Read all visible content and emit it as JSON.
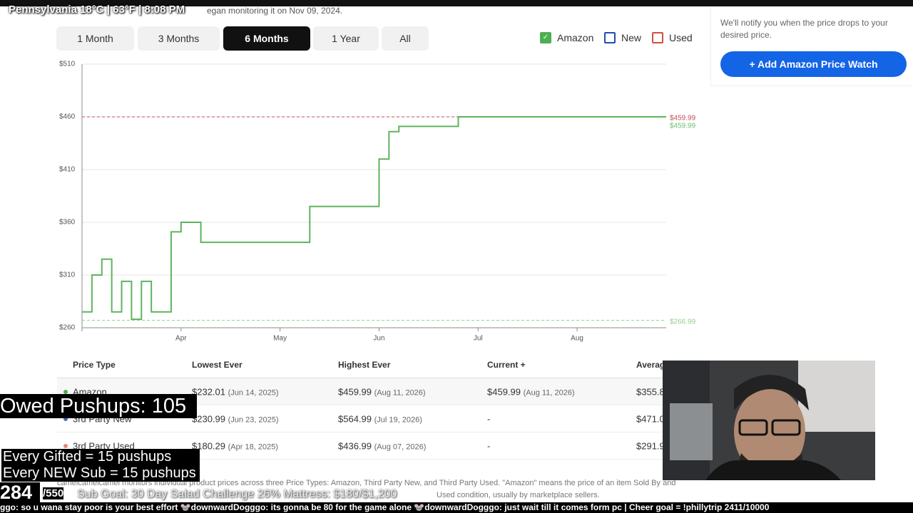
{
  "overlay": {
    "location": "Pennsylvania 18°C | 63°F | 8:08 PM",
    "monitoring": "egan monitoring it on Nov 09, 2024.",
    "pushups": "Owed Pushups: 105",
    "rules": [
      "Every Gifted = 15 pushups",
      "Every NEW Sub = 15 pushups"
    ],
    "count": "284",
    "count_goal": "/550",
    "goals": "Sub Goal: 30 Day Salad Challenge 26% Mattress: $180/$1,200",
    "chat": "ggo: so u wana stay poor is your best effort 🐭downwardDogggo: its gonna be 80 for the game alone 🐭downwardDogggo: just wait till it comes form pc | Cheer goal = !phillytrip 2411/10000"
  },
  "ranges": [
    "1 Month",
    "3 Months",
    "6 Months",
    "1 Year",
    "All"
  ],
  "active_range": 2,
  "legend": [
    {
      "name": "Amazon",
      "color": "#4caf50",
      "checked": true
    },
    {
      "name": "New",
      "color": "#1f4fb4",
      "checked": false
    },
    {
      "name": "Used",
      "color": "#d0503c",
      "checked": false
    }
  ],
  "sidebar": {
    "note": "We'll notify you when the price drops to your desired price.",
    "button": "+ Add Amazon Price Watch"
  },
  "table": {
    "headers": [
      "Price Type",
      "Lowest Ever",
      "Highest Ever",
      "Current +",
      "Averag"
    ],
    "rows": [
      {
        "dot": "#4caf50",
        "cells": [
          "Amazon",
          "$232.01",
          "(Jun 14, 2025)",
          "$459.99",
          "(Aug 11, 2026)",
          "$459.99",
          "(Aug 11, 2026)",
          "$355.8"
        ]
      },
      {
        "dot": "#4a6fc4",
        "cells": [
          "3rd Party New",
          "$230.99",
          "(Jun 23, 2025)",
          "$564.99",
          "(Jul 19, 2026)",
          "-",
          null,
          "$471.0"
        ]
      },
      {
        "dot": "#e08a7a",
        "cells": [
          "3rd Party Used",
          "$180.29",
          "(Apr 18, 2025)",
          "$436.99",
          "(Aug 07, 2026)",
          "-",
          null,
          "$291.9"
        ]
      }
    ]
  },
  "footer": [
    "camelcamelcamel monitors individual product prices across three Price Types: Amazon, Third Party New, and Third Party Used. \"Amazon\" means the price of an item Sold By and",
    "Used condition, usually by marketplace sellers."
  ],
  "chart_data": {
    "type": "line",
    "step": true,
    "grid": true,
    "categories": [
      "",
      null,
      null,
      null,
      null,
      null,
      null,
      null,
      null,
      null,
      "Apr",
      null,
      null,
      null,
      null,
      null,
      null,
      null,
      null,
      null,
      "May",
      null,
      null,
      null,
      null,
      null,
      null,
      null,
      null,
      null,
      "Jun",
      null,
      null,
      null,
      null,
      null,
      null,
      null,
      null,
      null,
      "Jul",
      null,
      null,
      null,
      null,
      null,
      null,
      null,
      null,
      null,
      "Aug",
      null,
      null,
      null,
      null,
      null,
      null,
      null,
      null,
      null
    ],
    "series": [
      {
        "name": "Amazon",
        "color": "#5fb35f",
        "values": [
          275,
          310,
          325,
          275,
          304,
          268,
          304,
          275,
          275,
          351,
          360,
          360,
          341,
          341,
          341,
          341,
          341,
          341,
          341,
          341,
          341,
          341,
          341,
          375,
          375,
          375,
          375,
          375,
          375,
          375,
          420,
          446,
          451,
          451,
          451,
          451,
          451,
          451,
          459.99,
          459.99,
          459.99,
          459.99,
          459.99,
          459.99,
          459.99,
          459.99,
          459.99,
          459.99,
          459.99,
          459.99,
          459.99,
          459.99,
          459.99,
          459.99,
          459.99,
          459.99,
          459.99,
          459.99,
          459.99,
          459.99
        ]
      }
    ],
    "reference_lines": [
      {
        "value": 459.99,
        "label": "$459.99",
        "color": "#c0505a",
        "dashed": true
      },
      {
        "value": 459.99,
        "label": "$459.99",
        "color": "#6cbf6c",
        "dashed": false
      },
      {
        "value": 266.99,
        "label": "$266.99",
        "color": "#8fd08f",
        "dashed": true
      }
    ],
    "ylim": [
      260,
      510
    ],
    "yticks": [
      {
        "value": 260,
        "label": "$260"
      },
      {
        "value": 310,
        "label": "$310"
      },
      {
        "value": 360,
        "label": "$360"
      },
      {
        "value": 410,
        "label": "$410"
      },
      {
        "value": 460,
        "label": "$460"
      },
      {
        "value": 510,
        "label": "$510"
      }
    ]
  }
}
